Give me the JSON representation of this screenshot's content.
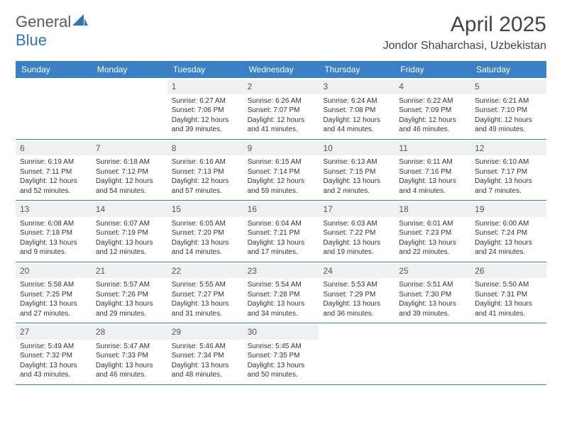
{
  "logo": {
    "text1": "General",
    "text2": "Blue"
  },
  "title": "April 2025",
  "location": "Jondor Shaharchasi, Uzbekistan",
  "colors": {
    "header_bg": "#3a80c4",
    "header_fg": "#ffffff",
    "daynum_bg": "#eef0f2",
    "border": "#3a80c4",
    "text": "#333333",
    "logo_gray": "#5a5a5a",
    "logo_blue": "#2f74b5",
    "background": "#ffffff"
  },
  "fonts": {
    "title_size": 30,
    "location_size": 16,
    "dayheader_size": 12,
    "daynum_size": 12,
    "body_size": 10
  },
  "day_names": [
    "Sunday",
    "Monday",
    "Tuesday",
    "Wednesday",
    "Thursday",
    "Friday",
    "Saturday"
  ],
  "weeks": [
    [
      null,
      null,
      {
        "n": "1",
        "sr": "Sunrise: 6:27 AM",
        "ss": "Sunset: 7:06 PM",
        "d1": "Daylight: 12 hours",
        "d2": "and 39 minutes."
      },
      {
        "n": "2",
        "sr": "Sunrise: 6:26 AM",
        "ss": "Sunset: 7:07 PM",
        "d1": "Daylight: 12 hours",
        "d2": "and 41 minutes."
      },
      {
        "n": "3",
        "sr": "Sunrise: 6:24 AM",
        "ss": "Sunset: 7:08 PM",
        "d1": "Daylight: 12 hours",
        "d2": "and 44 minutes."
      },
      {
        "n": "4",
        "sr": "Sunrise: 6:22 AM",
        "ss": "Sunset: 7:09 PM",
        "d1": "Daylight: 12 hours",
        "d2": "and 46 minutes."
      },
      {
        "n": "5",
        "sr": "Sunrise: 6:21 AM",
        "ss": "Sunset: 7:10 PM",
        "d1": "Daylight: 12 hours",
        "d2": "and 49 minutes."
      }
    ],
    [
      {
        "n": "6",
        "sr": "Sunrise: 6:19 AM",
        "ss": "Sunset: 7:11 PM",
        "d1": "Daylight: 12 hours",
        "d2": "and 52 minutes."
      },
      {
        "n": "7",
        "sr": "Sunrise: 6:18 AM",
        "ss": "Sunset: 7:12 PM",
        "d1": "Daylight: 12 hours",
        "d2": "and 54 minutes."
      },
      {
        "n": "8",
        "sr": "Sunrise: 6:16 AM",
        "ss": "Sunset: 7:13 PM",
        "d1": "Daylight: 12 hours",
        "d2": "and 57 minutes."
      },
      {
        "n": "9",
        "sr": "Sunrise: 6:15 AM",
        "ss": "Sunset: 7:14 PM",
        "d1": "Daylight: 12 hours",
        "d2": "and 59 minutes."
      },
      {
        "n": "10",
        "sr": "Sunrise: 6:13 AM",
        "ss": "Sunset: 7:15 PM",
        "d1": "Daylight: 13 hours",
        "d2": "and 2 minutes."
      },
      {
        "n": "11",
        "sr": "Sunrise: 6:11 AM",
        "ss": "Sunset: 7:16 PM",
        "d1": "Daylight: 13 hours",
        "d2": "and 4 minutes."
      },
      {
        "n": "12",
        "sr": "Sunrise: 6:10 AM",
        "ss": "Sunset: 7:17 PM",
        "d1": "Daylight: 13 hours",
        "d2": "and 7 minutes."
      }
    ],
    [
      {
        "n": "13",
        "sr": "Sunrise: 6:08 AM",
        "ss": "Sunset: 7:18 PM",
        "d1": "Daylight: 13 hours",
        "d2": "and 9 minutes."
      },
      {
        "n": "14",
        "sr": "Sunrise: 6:07 AM",
        "ss": "Sunset: 7:19 PM",
        "d1": "Daylight: 13 hours",
        "d2": "and 12 minutes."
      },
      {
        "n": "15",
        "sr": "Sunrise: 6:05 AM",
        "ss": "Sunset: 7:20 PM",
        "d1": "Daylight: 13 hours",
        "d2": "and 14 minutes."
      },
      {
        "n": "16",
        "sr": "Sunrise: 6:04 AM",
        "ss": "Sunset: 7:21 PM",
        "d1": "Daylight: 13 hours",
        "d2": "and 17 minutes."
      },
      {
        "n": "17",
        "sr": "Sunrise: 6:03 AM",
        "ss": "Sunset: 7:22 PM",
        "d1": "Daylight: 13 hours",
        "d2": "and 19 minutes."
      },
      {
        "n": "18",
        "sr": "Sunrise: 6:01 AM",
        "ss": "Sunset: 7:23 PM",
        "d1": "Daylight: 13 hours",
        "d2": "and 22 minutes."
      },
      {
        "n": "19",
        "sr": "Sunrise: 6:00 AM",
        "ss": "Sunset: 7:24 PM",
        "d1": "Daylight: 13 hours",
        "d2": "and 24 minutes."
      }
    ],
    [
      {
        "n": "20",
        "sr": "Sunrise: 5:58 AM",
        "ss": "Sunset: 7:25 PM",
        "d1": "Daylight: 13 hours",
        "d2": "and 27 minutes."
      },
      {
        "n": "21",
        "sr": "Sunrise: 5:57 AM",
        "ss": "Sunset: 7:26 PM",
        "d1": "Daylight: 13 hours",
        "d2": "and 29 minutes."
      },
      {
        "n": "22",
        "sr": "Sunrise: 5:55 AM",
        "ss": "Sunset: 7:27 PM",
        "d1": "Daylight: 13 hours",
        "d2": "and 31 minutes."
      },
      {
        "n": "23",
        "sr": "Sunrise: 5:54 AM",
        "ss": "Sunset: 7:28 PM",
        "d1": "Daylight: 13 hours",
        "d2": "and 34 minutes."
      },
      {
        "n": "24",
        "sr": "Sunrise: 5:53 AM",
        "ss": "Sunset: 7:29 PM",
        "d1": "Daylight: 13 hours",
        "d2": "and 36 minutes."
      },
      {
        "n": "25",
        "sr": "Sunrise: 5:51 AM",
        "ss": "Sunset: 7:30 PM",
        "d1": "Daylight: 13 hours",
        "d2": "and 39 minutes."
      },
      {
        "n": "26",
        "sr": "Sunrise: 5:50 AM",
        "ss": "Sunset: 7:31 PM",
        "d1": "Daylight: 13 hours",
        "d2": "and 41 minutes."
      }
    ],
    [
      {
        "n": "27",
        "sr": "Sunrise: 5:49 AM",
        "ss": "Sunset: 7:32 PM",
        "d1": "Daylight: 13 hours",
        "d2": "and 43 minutes."
      },
      {
        "n": "28",
        "sr": "Sunrise: 5:47 AM",
        "ss": "Sunset: 7:33 PM",
        "d1": "Daylight: 13 hours",
        "d2": "and 46 minutes."
      },
      {
        "n": "29",
        "sr": "Sunrise: 5:46 AM",
        "ss": "Sunset: 7:34 PM",
        "d1": "Daylight: 13 hours",
        "d2": "and 48 minutes."
      },
      {
        "n": "30",
        "sr": "Sunrise: 5:45 AM",
        "ss": "Sunset: 7:35 PM",
        "d1": "Daylight: 13 hours",
        "d2": "and 50 minutes."
      },
      null,
      null,
      null
    ]
  ]
}
